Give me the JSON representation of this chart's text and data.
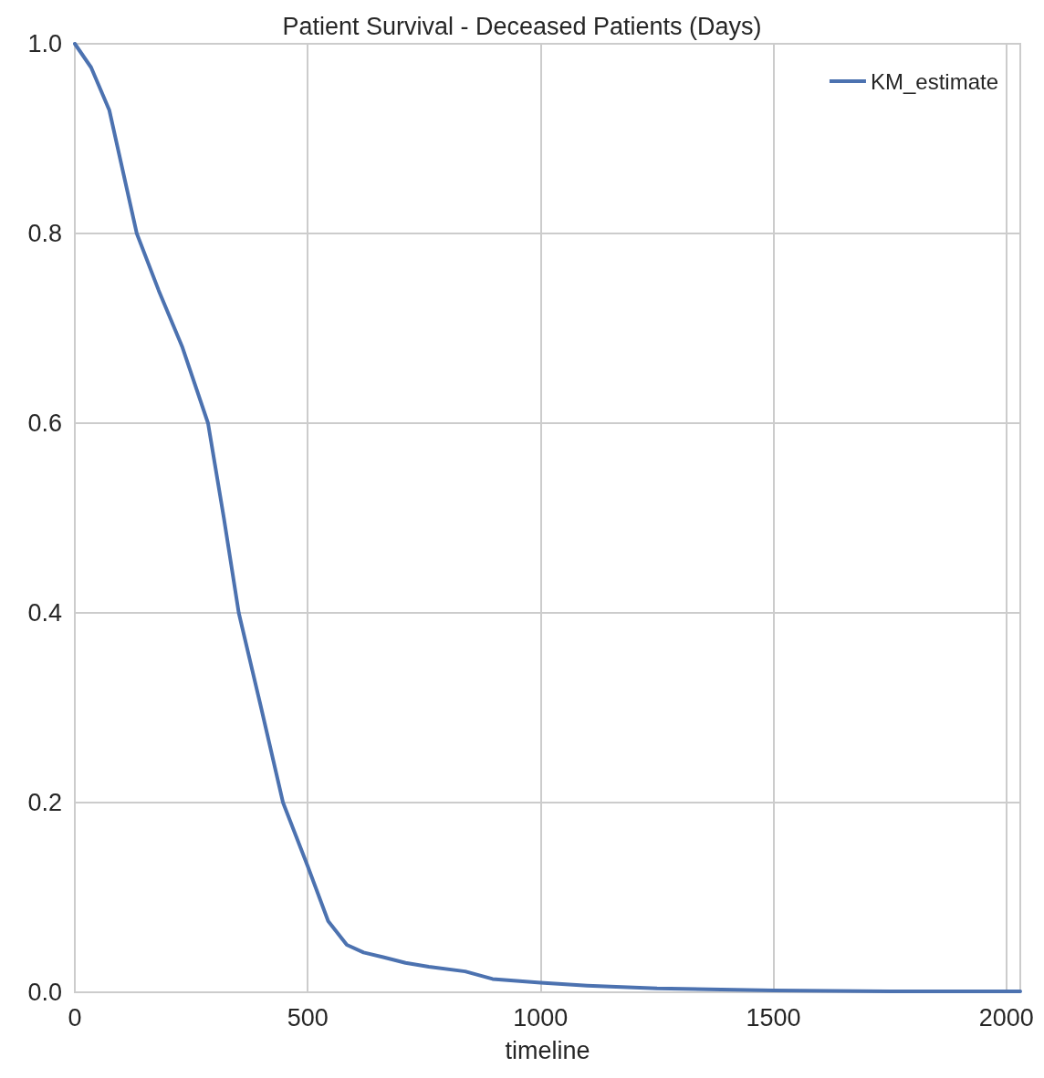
{
  "chart_data": {
    "type": "line",
    "title": "Patient Survival - Deceased Patients (Days)",
    "xlabel": "timeline",
    "x": [
      0,
      35,
      74,
      133,
      180,
      231,
      286,
      320,
      352,
      400,
      447,
      500,
      544,
      584,
      620,
      662,
      710,
      760,
      838,
      897,
      1000,
      1100,
      1250,
      1500,
      1750,
      2030
    ],
    "series": [
      {
        "name": "KM_estimate",
        "color": "#4c72b0",
        "values": [
          1.0,
          0.975,
          0.93,
          0.8,
          0.74,
          0.68,
          0.6,
          0.5,
          0.4,
          0.3,
          0.2,
          0.133,
          0.075,
          0.05,
          0.042,
          0.037,
          0.031,
          0.027,
          0.022,
          0.014,
          0.01,
          0.007,
          0.004,
          0.002,
          0.001,
          0.001
        ]
      }
    ],
    "xlim": [
      0,
      2030
    ],
    "xticks": [
      0,
      500,
      1000,
      1500,
      2000
    ],
    "ylim": [
      0,
      1
    ],
    "yticks": [
      {
        "value": 0,
        "label": "0.0"
      },
      {
        "value": 0.2,
        "label": "0.2"
      },
      {
        "value": 0.4,
        "label": "0.4"
      },
      {
        "value": 0.6,
        "label": "0.6"
      },
      {
        "value": 0.8,
        "label": "0.8"
      },
      {
        "value": 1,
        "label": "1.0"
      }
    ],
    "grid": true,
    "legend": "top right",
    "marker": "none",
    "line_style": "solid"
  }
}
